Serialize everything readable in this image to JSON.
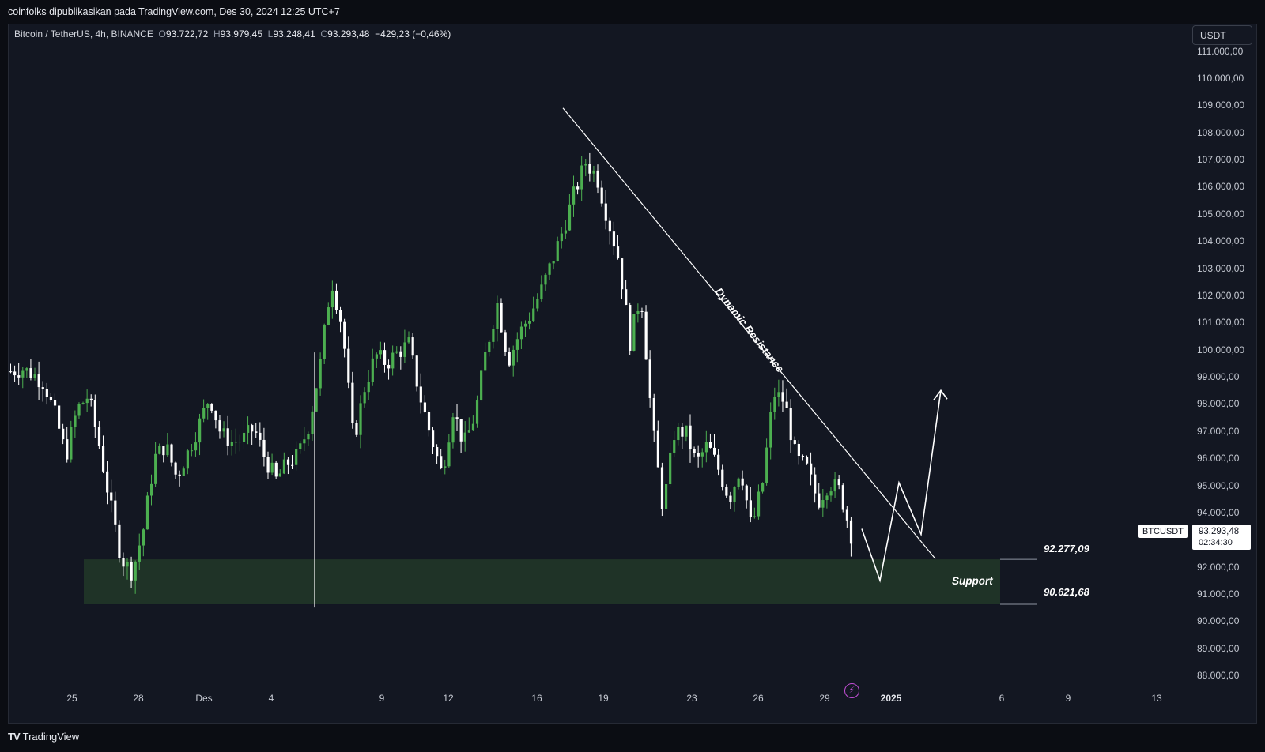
{
  "header": {
    "publisher_line": "coinfolks dipublikasikan pada TradingView.com, Des 30, 2024 12:25 UTC+7"
  },
  "symbol": {
    "name": "Bitcoin / TetherUS, 4h, BINANCE",
    "open_label": "O",
    "open": "93.722,72",
    "high_label": "H",
    "high": "93.979,45",
    "low_label": "L",
    "low": "93.248,41",
    "close_label": "C",
    "close": "93.293,48",
    "change": "−429,23 (−0,46%)"
  },
  "currency_button": "USDT",
  "ticker_tag": "BTCUSDT",
  "price_box": {
    "price": "93.293,48",
    "countdown": "02:34:30"
  },
  "levels": {
    "upper": "92.277,09",
    "lower": "90.621,68"
  },
  "annotations": {
    "support_label": "Support",
    "resistance_label": "Dynamic Resistance"
  },
  "footer": {
    "brand": "TradingView"
  },
  "colors": {
    "background": "#131722",
    "up_candle": "#4caf50",
    "down_candle": "#ffffff",
    "support_zone": "#1f3327"
  },
  "chart_data": {
    "type": "candlestick",
    "y_axis_labels": [
      "111.000,00",
      "110.000,00",
      "109.000,00",
      "108.000,00",
      "107.000,00",
      "106.000,00",
      "105.000,00",
      "104.000,00",
      "103.000,00",
      "102.000,00",
      "101.000,00",
      "100.000,00",
      "99.000,00",
      "98.000,00",
      "97.000,00",
      "96.000,00",
      "95.000,00",
      "94.000,00",
      "92.000,00",
      "91.000,00",
      "90.000,00",
      "89.000,00",
      "88.000,00"
    ],
    "x_axis_labels": [
      "25",
      "28",
      "Des",
      "4",
      "9",
      "12",
      "16",
      "19",
      "23",
      "26",
      "29",
      "2025",
      "6",
      "9",
      "13"
    ],
    "ylim": [
      87000,
      111500
    ],
    "price_path_4h": [
      99200,
      99300,
      99100,
      98800,
      97600,
      96100,
      97800,
      98300,
      96500,
      94300,
      92300,
      91800,
      93400,
      96000,
      96500,
      95300,
      96200,
      97200,
      98300,
      96900,
      96600,
      96700,
      97100,
      96000,
      95200,
      95800,
      96100,
      97300,
      99500,
      102600,
      100800,
      96600,
      98600,
      99800,
      99500,
      99900,
      100200,
      98300,
      96800,
      95400,
      97800,
      96500,
      97600,
      100000,
      101700,
      99600,
      100600,
      101300,
      102200,
      103300,
      104500,
      105800,
      106900,
      106400,
      104800,
      103300,
      100300,
      102100,
      97300,
      94100,
      96900,
      97000,
      95800,
      96500,
      95600,
      94500,
      95700,
      93400,
      95100,
      98400,
      98100,
      96000,
      95600,
      94400,
      95100,
      94800,
      93200
    ],
    "support_zone": {
      "low": 90621.68,
      "high": 92277.09
    },
    "dynamic_resistance": {
      "from": {
        "x": "Des 17",
        "y": 108900
      },
      "to": {
        "x": "Jan 2",
        "y": 92300
      }
    },
    "projection_path": [
      93400,
      91500,
      95100,
      93200,
      98500
    ]
  }
}
